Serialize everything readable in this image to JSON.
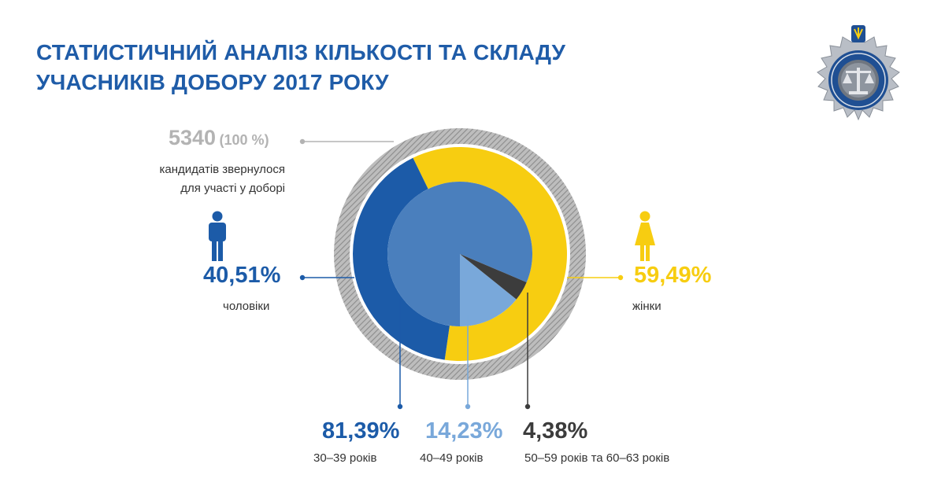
{
  "title": {
    "line1": "СТАТИСТИЧНИЙ АНАЛІЗ КІЛЬКОСТІ ТА СКЛАДУ",
    "line2": "УЧАСНИКІВ ДОБОРУ 2017 РОКУ"
  },
  "total": {
    "count": "5340",
    "percent": "(100 %)",
    "desc_line1": "кандидатів звернулося",
    "desc_line2": "для участі у доборі"
  },
  "gender": {
    "men_percent": "40,51%",
    "men_label": "чоловіки",
    "women_percent": "59,49%",
    "women_label": "жінки"
  },
  "age": [
    {
      "percent": "81,39%",
      "label": "30–39 років"
    },
    {
      "percent": "14,23%",
      "label": "40–49 років"
    },
    {
      "percent": "4,38%",
      "label": "50–59 років та 60–63 років"
    }
  ],
  "colors": {
    "title": "#1f5ca8",
    "men": "#1c5ba8",
    "women": "#f7cd11",
    "age_30_39": "#4a7fbd",
    "age_40_49": "#79a8da",
    "age_50_63": "#3c3c3c",
    "total_ring": "#9a9a9a"
  },
  "chart_data": {
    "type": "pie",
    "title": "СТАТИСТИЧНИЙ АНАЛІЗ КІЛЬКОСТІ ТА СКЛАДУ УЧАСНИКІВ ДОБОРУ 2017 РОКУ",
    "total": 5340,
    "series": [
      {
        "name": "",
        "categories": [
          "чоловіки",
          "жінки"
        ],
        "values": [
          40.51,
          59.49
        ]
      },
      {
        "name": "",
        "categories": [
          "30–39 років",
          "40–49 років",
          "50–59 років та 60–63 років"
        ],
        "values": [
          81.39,
          14.23,
          4.38
        ]
      }
    ],
    "legend": "none"
  },
  "icons": {
    "men": "male-person-icon",
    "women": "female-person-icon",
    "emblem": "qualification-commission-emblem-icon"
  }
}
